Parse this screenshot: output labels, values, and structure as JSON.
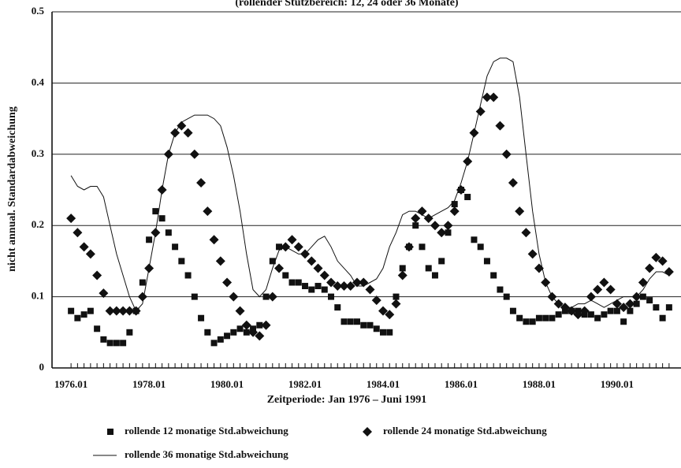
{
  "chart_data": {
    "type": "scatter",
    "title": "(rollender Stützbereich: 12, 24 oder 36 Monate)",
    "x_label": "Zeitperiode: Jan 1976 – Juni 1991",
    "y_label": "nicht annual. Standardabweichung",
    "categories": [
      "1976.01",
      null,
      null,
      null,
      null,
      null,
      null,
      null,
      null,
      null,
      null,
      null,
      "1978.01",
      null,
      null,
      null,
      null,
      null,
      null,
      null,
      null,
      null,
      null,
      null,
      "1980.01",
      null,
      null,
      null,
      null,
      null,
      null,
      null,
      null,
      null,
      null,
      null,
      "1982.01",
      null,
      null,
      null,
      null,
      null,
      null,
      null,
      null,
      null,
      null,
      null,
      "1984.01",
      null,
      null,
      null,
      null,
      null,
      null,
      null,
      null,
      null,
      null,
      null,
      "1986.01",
      null,
      null,
      null,
      null,
      null,
      null,
      null,
      null,
      null,
      null,
      null,
      "1988.01",
      null,
      null,
      null,
      null,
      null,
      null,
      null,
      null,
      null,
      null,
      null,
      "1990.01",
      null,
      null,
      null,
      null,
      null,
      null,
      null,
      null
    ],
    "ylim": [
      0,
      0.5
    ],
    "yticks": [
      0,
      0.1,
      0.2,
      0.3,
      0.4,
      0.5
    ],
    "grid": true,
    "series": [
      {
        "name": "rollende 12 monatige Std.abweichung",
        "color": "#111111",
        "marker": "square",
        "values": [
          0.08,
          0.07,
          0.075,
          0.08,
          0.055,
          0.04,
          0.035,
          0.035,
          0.035,
          0.05,
          0.08,
          0.12,
          0.18,
          0.22,
          0.21,
          0.19,
          0.17,
          0.15,
          0.13,
          0.1,
          0.07,
          0.05,
          0.035,
          0.04,
          0.045,
          0.05,
          0.055,
          0.05,
          0.055,
          0.06,
          0.1,
          0.15,
          0.17,
          0.13,
          0.12,
          0.12,
          0.115,
          0.11,
          0.115,
          0.11,
          0.1,
          0.085,
          0.065,
          0.065,
          0.065,
          0.06,
          0.06,
          0.055,
          0.05,
          0.05,
          0.1,
          0.14,
          0.17,
          0.2,
          0.17,
          0.14,
          0.13,
          0.15,
          0.19,
          0.23,
          0.25,
          0.24,
          0.18,
          0.17,
          0.15,
          0.13,
          0.11,
          0.1,
          0.08,
          0.07,
          0.065,
          0.065,
          0.07,
          0.07,
          0.07,
          0.075,
          0.08,
          0.08,
          0.08,
          0.075,
          0.075,
          0.07,
          0.075,
          0.08,
          0.08,
          0.065,
          0.08,
          0.09,
          0.1,
          0.095,
          0.085,
          0.07,
          0.085
        ]
      },
      {
        "name": "rollende 24 monatige Std.abweichung",
        "color": "#111111",
        "marker": "diamond",
        "values": [
          0.21,
          0.19,
          0.17,
          0.16,
          0.13,
          0.105,
          0.08,
          0.08,
          0.08,
          0.08,
          0.08,
          0.1,
          0.14,
          0.19,
          0.25,
          0.3,
          0.33,
          0.34,
          0.33,
          0.3,
          0.26,
          0.22,
          0.18,
          0.15,
          0.12,
          0.1,
          0.08,
          0.06,
          0.05,
          0.045,
          0.06,
          0.1,
          0.14,
          0.17,
          0.18,
          0.17,
          0.16,
          0.15,
          0.14,
          0.13,
          0.12,
          0.115,
          0.115,
          0.115,
          0.12,
          0.12,
          0.11,
          0.095,
          0.08,
          0.075,
          0.09,
          0.13,
          0.17,
          0.21,
          0.22,
          0.21,
          0.2,
          0.19,
          0.2,
          0.22,
          0.25,
          0.29,
          0.33,
          0.36,
          0.38,
          0.38,
          0.34,
          0.3,
          0.26,
          0.22,
          0.19,
          0.16,
          0.14,
          0.12,
          0.1,
          0.09,
          0.085,
          0.08,
          0.075,
          0.08,
          0.1,
          0.11,
          0.12,
          0.11,
          0.09,
          0.085,
          0.09,
          0.1,
          0.12,
          0.14,
          0.155,
          0.15,
          0.135
        ]
      },
      {
        "name": "rollende 36 monatige Std.abweichung",
        "color": "#111111",
        "marker": "line",
        "values": [
          0.27,
          0.255,
          0.25,
          0.255,
          0.255,
          0.24,
          0.2,
          0.16,
          0.13,
          0.1,
          0.08,
          0.09,
          0.14,
          0.19,
          0.25,
          0.3,
          0.33,
          0.345,
          0.35,
          0.355,
          0.355,
          0.355,
          0.35,
          0.34,
          0.31,
          0.27,
          0.22,
          0.16,
          0.11,
          0.1,
          0.11,
          0.14,
          0.165,
          0.17,
          0.165,
          0.16,
          0.16,
          0.17,
          0.18,
          0.185,
          0.17,
          0.15,
          0.14,
          0.13,
          0.115,
          0.115,
          0.12,
          0.125,
          0.14,
          0.17,
          0.19,
          0.215,
          0.22,
          0.22,
          0.215,
          0.21,
          0.215,
          0.22,
          0.225,
          0.235,
          0.26,
          0.29,
          0.33,
          0.37,
          0.41,
          0.43,
          0.435,
          0.435,
          0.43,
          0.38,
          0.3,
          0.22,
          0.16,
          0.12,
          0.1,
          0.09,
          0.085,
          0.085,
          0.09,
          0.09,
          0.095,
          0.09,
          0.085,
          0.09,
          0.095,
          0.1,
          0.1,
          0.1,
          0.11,
          0.125,
          0.135,
          0.135,
          0.13
        ]
      }
    ]
  }
}
